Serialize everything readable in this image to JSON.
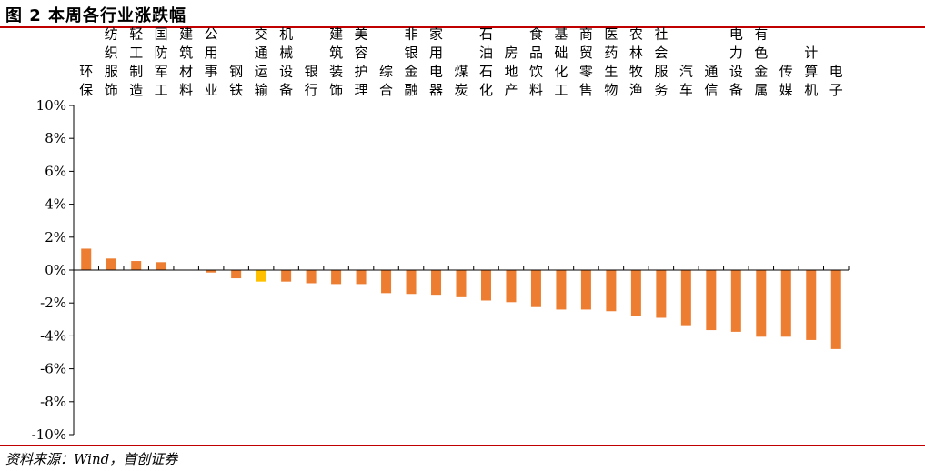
{
  "figure": {
    "title": "图 2 本周各行业涨跌幅",
    "source": "资料来源：Wind，首创证券"
  },
  "colors": {
    "bar": "#ED7D31",
    "highlight": "#FFC000",
    "rule": "#C00000"
  },
  "chart_data": {
    "type": "bar",
    "title": "",
    "xlabel": "",
    "ylabel": "",
    "ylim": [
      -10,
      10
    ],
    "y_ticks": [
      10,
      8,
      6,
      4,
      2,
      0,
      -2,
      -4,
      -6,
      -8,
      -10
    ],
    "y_tick_labels": [
      "10%",
      "8%",
      "6%",
      "4%",
      "2%",
      "0%",
      "-2%",
      "-4%",
      "-6%",
      "-8%",
      "-10%"
    ],
    "unit": "%",
    "grid": false,
    "legend": "none",
    "highlight_index": 7,
    "categories": [
      "环保",
      "纺织服饰",
      "轻工制造",
      "国防军工",
      "建筑材料",
      "公用事业",
      "钢铁",
      "交通运输",
      "机械设备",
      "银行",
      "建筑装饰",
      "美容护理",
      "综合",
      "非银金融",
      "家用电器",
      "煤炭",
      "石油石化",
      "房地产",
      "食品饮料",
      "基础化工",
      "商贸零售",
      "医药生物",
      "农林牧渔",
      "社会服务",
      "汽车",
      "通信",
      "电力设备",
      "有色金属",
      "传媒",
      "计算机",
      "电子"
    ],
    "values": [
      1.3,
      0.7,
      0.55,
      0.48,
      0.0,
      -0.15,
      -0.5,
      -0.7,
      -0.7,
      -0.8,
      -0.85,
      -0.85,
      -1.4,
      -1.45,
      -1.5,
      -1.65,
      -1.85,
      -1.95,
      -2.25,
      -2.4,
      -2.4,
      -2.5,
      -2.8,
      -2.9,
      -3.35,
      -3.65,
      -3.75,
      -4.05,
      -4.05,
      -4.25,
      -4.8
    ]
  }
}
